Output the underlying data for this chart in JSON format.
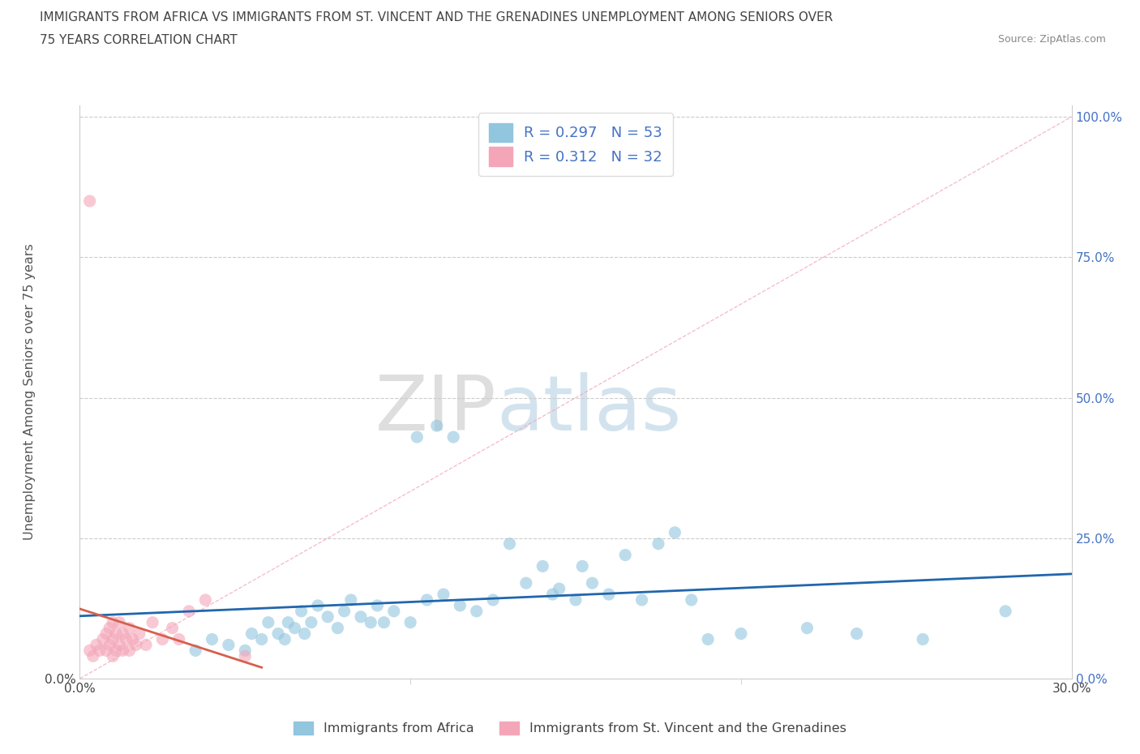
{
  "title_line1": "IMMIGRANTS FROM AFRICA VS IMMIGRANTS FROM ST. VINCENT AND THE GRENADINES UNEMPLOYMENT AMONG SENIORS OVER",
  "title_line2": "75 YEARS CORRELATION CHART",
  "source": "Source: ZipAtlas.com",
  "ylabel": "Unemployment Among Seniors over 75 years",
  "xlim": [
    0.0,
    0.3
  ],
  "ylim": [
    0.0,
    1.02
  ],
  "yticks": [
    0.0,
    0.25,
    0.5,
    0.75,
    1.0
  ],
  "ytick_labels_left": [
    "0.0%",
    "",
    "",
    "",
    ""
  ],
  "ytick_labels_right": [
    "0.0%",
    "25.0%",
    "50.0%",
    "75.0%",
    "100.0%"
  ],
  "xtick_labels": [
    "0.0%",
    "30.0%"
  ],
  "legend_r1": "R = 0.297   N = 53",
  "legend_r2": "R = 0.312   N = 32",
  "blue_color": "#92c5de",
  "pink_color": "#f4a6b8",
  "blue_line_color": "#2166ac",
  "pink_line_color": "#d6604d",
  "ref_line_color": "#f4a6b8",
  "watermark_zip": "ZIP",
  "watermark_atlas": "atlas",
  "africa_x": [
    0.035,
    0.04,
    0.045,
    0.05,
    0.052,
    0.055,
    0.057,
    0.06,
    0.062,
    0.063,
    0.065,
    0.067,
    0.068,
    0.07,
    0.072,
    0.075,
    0.078,
    0.08,
    0.082,
    0.085,
    0.088,
    0.09,
    0.092,
    0.095,
    0.1,
    0.102,
    0.105,
    0.108,
    0.11,
    0.113,
    0.115,
    0.12,
    0.125,
    0.13,
    0.135,
    0.14,
    0.143,
    0.145,
    0.15,
    0.152,
    0.155,
    0.16,
    0.165,
    0.17,
    0.175,
    0.18,
    0.185,
    0.19,
    0.2,
    0.22,
    0.235,
    0.255,
    0.28
  ],
  "africa_y": [
    0.05,
    0.07,
    0.06,
    0.05,
    0.08,
    0.07,
    0.1,
    0.08,
    0.07,
    0.1,
    0.09,
    0.12,
    0.08,
    0.1,
    0.13,
    0.11,
    0.09,
    0.12,
    0.14,
    0.11,
    0.1,
    0.13,
    0.1,
    0.12,
    0.1,
    0.43,
    0.14,
    0.45,
    0.15,
    0.43,
    0.13,
    0.12,
    0.14,
    0.24,
    0.17,
    0.2,
    0.15,
    0.16,
    0.14,
    0.2,
    0.17,
    0.15,
    0.22,
    0.14,
    0.24,
    0.26,
    0.14,
    0.07,
    0.08,
    0.09,
    0.08,
    0.07,
    0.12
  ],
  "svg_x": [
    0.003,
    0.004,
    0.005,
    0.006,
    0.007,
    0.008,
    0.008,
    0.009,
    0.009,
    0.01,
    0.01,
    0.01,
    0.011,
    0.011,
    0.012,
    0.012,
    0.013,
    0.013,
    0.014,
    0.015,
    0.015,
    0.016,
    0.017,
    0.018,
    0.02,
    0.022,
    0.025,
    0.028,
    0.03,
    0.033,
    0.038,
    0.05
  ],
  "svg_y": [
    0.05,
    0.04,
    0.06,
    0.05,
    0.07,
    0.05,
    0.08,
    0.06,
    0.09,
    0.04,
    0.07,
    0.1,
    0.05,
    0.08,
    0.06,
    0.1,
    0.05,
    0.08,
    0.07,
    0.05,
    0.09,
    0.07,
    0.06,
    0.08,
    0.06,
    0.1,
    0.07,
    0.09,
    0.07,
    0.12,
    0.14,
    0.04
  ],
  "svg_outlier_x": [
    0.003
  ],
  "svg_outlier_y": [
    0.85
  ]
}
